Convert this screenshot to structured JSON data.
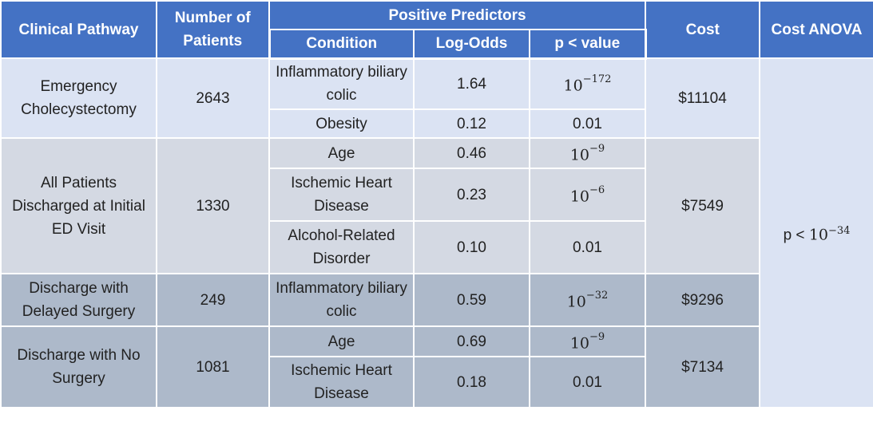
{
  "headers": {
    "pathway": "Clinical Pathway",
    "patients": "Number of Patients",
    "predictors": "Positive Predictors",
    "condition": "Condition",
    "log_odds": "Log-Odds",
    "p_value": "p < value",
    "cost": "Cost",
    "cost_anova": "Cost ANOVA"
  },
  "anova": {
    "prefix": "p < ",
    "base": "10",
    "exp": "−34"
  },
  "groups": [
    {
      "pathway": "Emergency Cholecystectomy",
      "patients": "2643",
      "cost": "$11104",
      "rows": [
        {
          "condition": "Inflammatory biliary colic",
          "log_odds": "1.64",
          "p_base": "10",
          "p_exp": "−172"
        },
        {
          "condition": "Obesity",
          "log_odds": "0.12",
          "p_plain": "0.01"
        }
      ]
    },
    {
      "pathway": "All Patients Discharged at Initial ED Visit",
      "patients": "1330",
      "cost": "$7549",
      "rows": [
        {
          "condition": "Age",
          "log_odds": "0.46",
          "p_base": "10",
          "p_exp": "−9"
        },
        {
          "condition": "Ischemic Heart Disease",
          "log_odds": "0.23",
          "p_base": "10",
          "p_exp": "−6"
        },
        {
          "condition": "Alcohol-Related Disorder",
          "log_odds": "0.10",
          "p_plain": "0.01"
        }
      ]
    },
    {
      "pathway": "Discharge with Delayed Surgery",
      "patients": "249",
      "cost": "$9296",
      "rows": [
        {
          "condition": "Inflammatory biliary colic",
          "log_odds": "0.59",
          "p_base": "10",
          "p_exp": "−32"
        }
      ]
    },
    {
      "pathway": "Discharge with No Surgery",
      "patients": "1081",
      "cost": "$7134",
      "rows": [
        {
          "condition": "Age",
          "log_odds": "0.69",
          "p_base": "10",
          "p_exp": "−9"
        },
        {
          "condition": "Ischemic Heart Disease",
          "log_odds": "0.18",
          "p_plain": "0.01"
        }
      ]
    }
  ]
}
